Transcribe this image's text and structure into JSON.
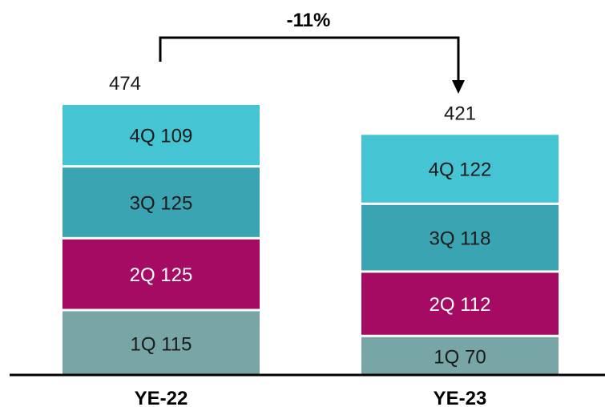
{
  "chart_data": {
    "type": "bar",
    "stacked": true,
    "categories": [
      "YE-22",
      "YE-23"
    ],
    "totals": [
      "474",
      "421"
    ],
    "series": [
      {
        "quarter": "1Q",
        "values": [
          115,
          70
        ],
        "labels": [
          "1Q 115",
          "1Q 70"
        ],
        "color": "#78A6A6",
        "text_color": "#1a1a1a"
      },
      {
        "quarter": "2Q",
        "values": [
          125,
          112
        ],
        "labels": [
          "2Q 125",
          "2Q 112"
        ],
        "color": "#A50B62",
        "text_color": "#ffffff"
      },
      {
        "quarter": "3Q",
        "values": [
          125,
          118
        ],
        "labels": [
          "3Q 125",
          "3Q 118"
        ],
        "color": "#3AA4B2",
        "text_color": "#1a1a1a"
      },
      {
        "quarter": "4Q",
        "values": [
          109,
          122
        ],
        "labels": [
          "4Q 109",
          "4Q 122"
        ],
        "color": "#45C4D3",
        "text_color": "#1a1a1a"
      }
    ],
    "change_label": "-11%",
    "ylim": [
      0,
      474
    ],
    "grid": false,
    "legend": "none",
    "xlabel": "",
    "ylabel": ""
  },
  "colors": {
    "baseline": "#000000",
    "bracket": "#000000",
    "text": "#1a1a1a"
  }
}
